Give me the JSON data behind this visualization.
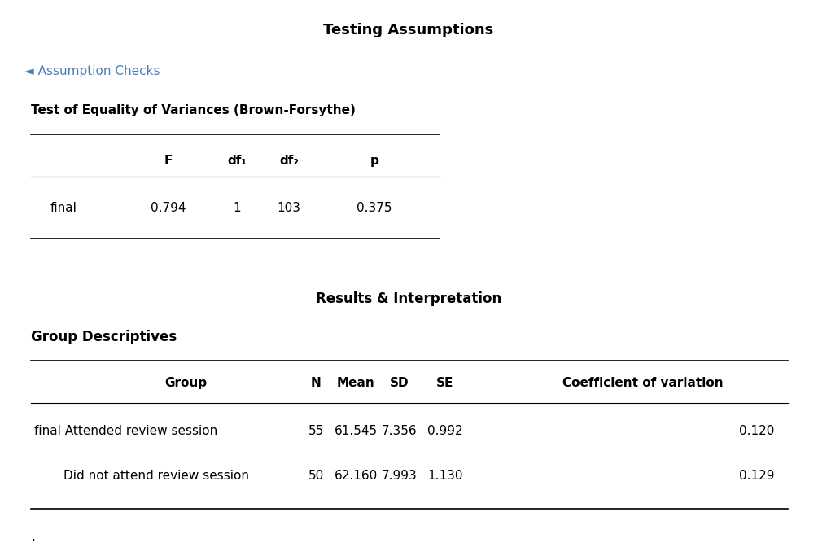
{
  "main_title": "Testing Assumptions",
  "assumption_checks_label": "◄ Assumption Checks",
  "section1_title": "Test of Equality of Variances (Brown-Forsythe)",
  "table1_headers": [
    "",
    "F",
    "df₁",
    "df₂",
    "p"
  ],
  "table1_row": [
    "final",
    "0.794",
    "1",
    "103",
    "0.375"
  ],
  "section2_title": "Results & Interpretation",
  "section3_title": "Group Descriptives",
  "table2_headers": [
    "Group",
    "N",
    "Mean",
    "SD",
    "SE",
    "Coefficient of variation"
  ],
  "table2_row1_label": "final Attended review session",
  "table2_row1_indent": 42,
  "table2_row2_label": "Did not attend review session",
  "table2_row2_indent": 78,
  "table2_rows": [
    [
      "55",
      "61.545",
      "7.356",
      "0.992",
      "0.120"
    ],
    [
      "50",
      "62.160",
      "7.993",
      "1.130",
      "0.129"
    ]
  ],
  "dot_label": ".",
  "bg_color": "#ffffff",
  "text_color": "#000000",
  "link_color": "#4a7fb5",
  "line_color": "#000000"
}
